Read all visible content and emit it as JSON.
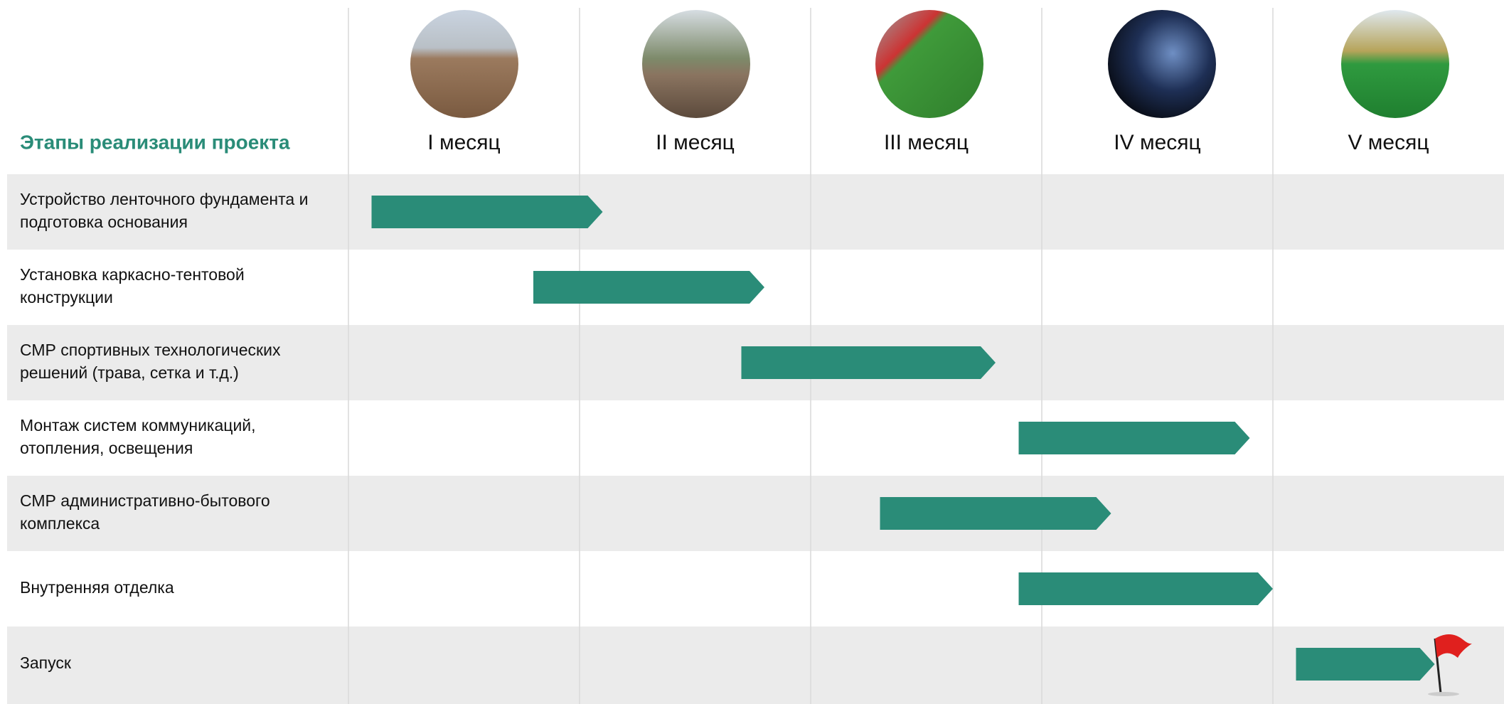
{
  "chart_data": {
    "type": "gantt",
    "title": "Этапы реализации проекта",
    "categories": [
      "I месяц",
      "II месяц",
      "III месяц",
      "IV месяц",
      "V месяц"
    ],
    "xlim": [
      0,
      5
    ],
    "color": "#2a8c78",
    "tasks": [
      {
        "label": [
          "Устройство ленточного фундамента и",
          "подготовка основания"
        ],
        "start": 0.1,
        "end": 1.1
      },
      {
        "label": [
          "Установка каркасно-тентовой",
          "конструкции"
        ],
        "start": 0.8,
        "end": 1.8
      },
      {
        "label": [
          "СМР спортивных технологических",
          "решений (трава, сетка и т.д.)"
        ],
        "start": 1.7,
        "end": 2.8
      },
      {
        "label": [
          "Монтаж систем коммуникаций,",
          "отопления, освещения"
        ],
        "start": 2.9,
        "end": 3.9
      },
      {
        "label": [
          "СМР административно-бытового",
          "комплекса"
        ],
        "start": 2.3,
        "end": 3.3
      },
      {
        "label": [
          "Внутренняя отделка"
        ],
        "start": 2.9,
        "end": 4.0
      },
      {
        "label": [
          "Запуск"
        ],
        "start": 4.1,
        "end": 4.7
      }
    ]
  }
}
